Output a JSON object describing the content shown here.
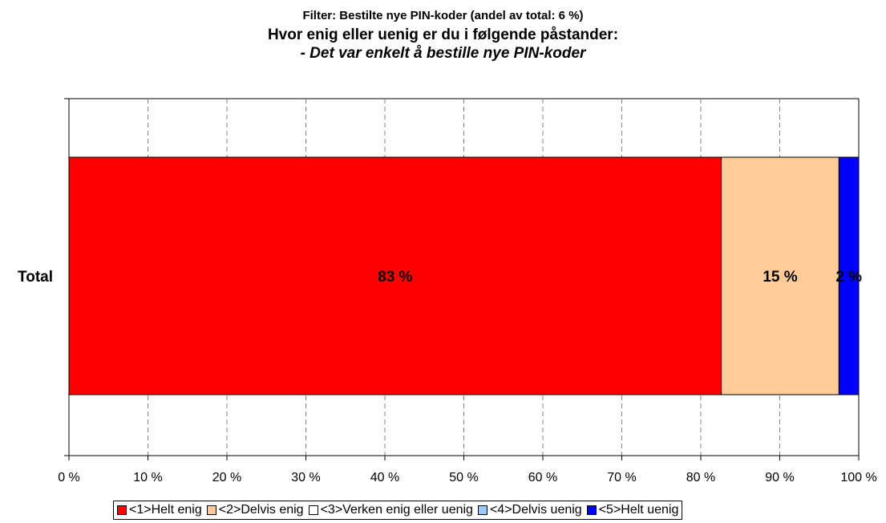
{
  "chart_data": {
    "type": "bar",
    "orientation": "horizontal",
    "stacked": true,
    "filter_text": "Filter: Bestilte nye PIN-koder (andel av total: 6 %)",
    "title": "Hvor enig eller uenig er du i følgende påstander:",
    "subtitle": "- Det var enkelt å bestille nye PIN-koder",
    "categories": [
      "Total"
    ],
    "series": [
      {
        "name": "<1>Helt enig",
        "values": [
          82.6
        ],
        "label": "83 %",
        "color": "#ff0000"
      },
      {
        "name": "<2>Delvis enig",
        "values": [
          14.9
        ],
        "label": "15 %",
        "color": "#ffcc99"
      },
      {
        "name": "<3>Verken enig eller uenig",
        "values": [
          0
        ],
        "label": "",
        "color": "#ffffff"
      },
      {
        "name": "<4>Delvis uenig",
        "values": [
          0
        ],
        "label": "",
        "color": "#99ccff"
      },
      {
        "name": "<5>Helt uenig",
        "values": [
          2.5
        ],
        "label": "2 %",
        "color": "#0000ff"
      }
    ],
    "xlim": [
      0,
      100
    ],
    "x_ticks": [
      0,
      10,
      20,
      30,
      40,
      50,
      60,
      70,
      80,
      90,
      100
    ],
    "x_tick_labels": [
      "0 %",
      "10 %",
      "20 %",
      "30 %",
      "40 %",
      "50 %",
      "60 %",
      "70 %",
      "80 %",
      "90 %",
      "100 %"
    ],
    "grid": "vertical-dashed",
    "legend": "bottom"
  }
}
